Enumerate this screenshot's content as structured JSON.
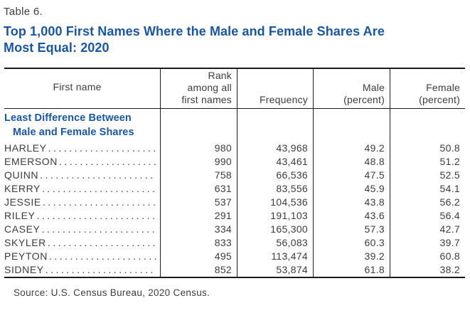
{
  "page": {
    "table_label": "Table 6.",
    "title_line1": "Top 1,000 First Names Where the Male and Female Shares Are",
    "title_line2": "Most Equal: 2020",
    "source": "Source: U.S. Census Bureau, 2020 Census."
  },
  "colors": {
    "title_blue": "#1b56a0",
    "text": "#3d3d3d",
    "rule": "#1c1c1c"
  },
  "table": {
    "headers": {
      "first_name": "First name",
      "rank": {
        "line1": "Rank",
        "line2": "among all",
        "line3": "first names"
      },
      "frequency": "Frequency",
      "male": {
        "line1": "Male",
        "line2": "(percent)"
      },
      "female": {
        "line1": "Female",
        "line2": "(percent)"
      }
    },
    "group": {
      "line1": "Least Difference Between",
      "line2": "Male and Female Shares"
    },
    "rows": [
      {
        "name": "HARLEY",
        "rank": "980",
        "frequency": "43,968",
        "male": "49.2",
        "female": "50.8"
      },
      {
        "name": "EMERSON",
        "rank": "990",
        "frequency": "43,461",
        "male": "48.8",
        "female": "51.2"
      },
      {
        "name": "QUINN",
        "rank": "758",
        "frequency": "66,536",
        "male": "47.5",
        "female": "52.5"
      },
      {
        "name": "KERRY",
        "rank": "631",
        "frequency": "83,556",
        "male": "45.9",
        "female": "54.1"
      },
      {
        "name": "JESSIE",
        "rank": "537",
        "frequency": "104,536",
        "male": "43.8",
        "female": "56.2"
      },
      {
        "name": "RILEY",
        "rank": "291",
        "frequency": "191,103",
        "male": "43.6",
        "female": "56.4"
      },
      {
        "name": "CASEY",
        "rank": "334",
        "frequency": "165,300",
        "male": "57.3",
        "female": "42.7"
      },
      {
        "name": "SKYLER",
        "rank": "833",
        "frequency": "56,083",
        "male": "60.3",
        "female": "39.7"
      },
      {
        "name": "PEYTON",
        "rank": "495",
        "frequency": "113,474",
        "male": "39.2",
        "female": "60.8"
      },
      {
        "name": "SIDNEY",
        "rank": "852",
        "frequency": "53,874",
        "male": "61.8",
        "female": "38.2"
      }
    ]
  }
}
